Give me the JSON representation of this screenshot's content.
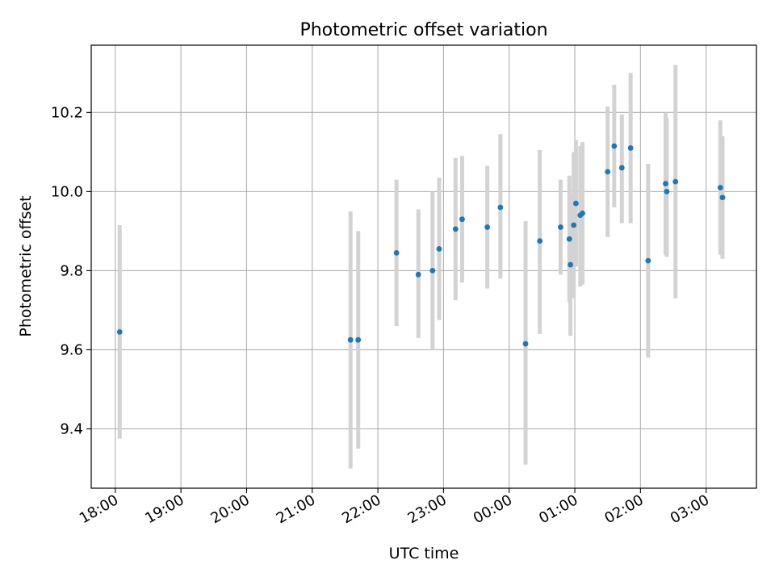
{
  "chart_data": {
    "type": "scatter",
    "title": "Photometric offset variation",
    "xlabel": "UTC time",
    "ylabel": "Photometric offset",
    "x_axis": {
      "kind": "time",
      "range": [
        "17:38",
        "27:46"
      ],
      "tick_labels": [
        "18:00",
        "19:00",
        "20:00",
        "21:00",
        "22:00",
        "23:00",
        "00:00",
        "01:00",
        "02:00",
        "03:00"
      ]
    },
    "y_axis": {
      "range": [
        9.25,
        10.37
      ],
      "ticks": [
        9.4,
        9.6,
        9.8,
        10.0,
        10.2
      ],
      "tick_labels": [
        "9.4",
        "9.6",
        "9.8",
        "10.0",
        "10.2"
      ]
    },
    "grid": true,
    "legend": "none",
    "colors": {
      "points": "#1f77b4",
      "errorbars": "#d3d3d3",
      "grid": "#b0b0b0"
    },
    "points": [
      {
        "t": "18:04",
        "y": 9.645,
        "ylo": 9.375,
        "yhi": 9.915
      },
      {
        "t": "21:35",
        "y": 9.625,
        "ylo": 9.3,
        "yhi": 9.95
      },
      {
        "t": "21:42",
        "y": 9.625,
        "ylo": 9.35,
        "yhi": 9.9
      },
      {
        "t": "22:17",
        "y": 9.845,
        "ylo": 9.66,
        "yhi": 10.03
      },
      {
        "t": "22:37",
        "y": 9.79,
        "ylo": 9.63,
        "yhi": 9.955
      },
      {
        "t": "22:50",
        "y": 9.8,
        "ylo": 9.6,
        "yhi": 10.0
      },
      {
        "t": "22:56",
        "y": 9.855,
        "ylo": 9.675,
        "yhi": 10.035
      },
      {
        "t": "23:11",
        "y": 9.905,
        "ylo": 9.725,
        "yhi": 10.085
      },
      {
        "t": "23:17",
        "y": 9.93,
        "ylo": 9.77,
        "yhi": 10.09
      },
      {
        "t": "23:40",
        "y": 9.91,
        "ylo": 9.755,
        "yhi": 10.065
      },
      {
        "t": "23:52",
        "y": 9.96,
        "ylo": 9.78,
        "yhi": 10.145
      },
      {
        "t": "00:15",
        "y": 9.615,
        "ylo": 9.31,
        "yhi": 9.925
      },
      {
        "t": "00:28",
        "y": 9.875,
        "ylo": 9.64,
        "yhi": 10.105
      },
      {
        "t": "00:47",
        "y": 9.91,
        "ylo": 9.79,
        "yhi": 10.03
      },
      {
        "t": "00:55",
        "y": 9.88,
        "ylo": 9.72,
        "yhi": 10.04
      },
      {
        "t": "00:56",
        "y": 9.815,
        "ylo": 9.635,
        "yhi": 9.995
      },
      {
        "t": "00:59",
        "y": 9.915,
        "ylo": 9.73,
        "yhi": 10.1
      },
      {
        "t": "01:01",
        "y": 9.97,
        "ylo": 9.81,
        "yhi": 10.13
      },
      {
        "t": "01:05",
        "y": 9.94,
        "ylo": 9.76,
        "yhi": 10.115
      },
      {
        "t": "01:07",
        "y": 9.945,
        "ylo": 9.765,
        "yhi": 10.125
      },
      {
        "t": "01:30",
        "y": 10.05,
        "ylo": 9.885,
        "yhi": 10.215
      },
      {
        "t": "01:36",
        "y": 10.115,
        "ylo": 9.96,
        "yhi": 10.27
      },
      {
        "t": "01:43",
        "y": 10.06,
        "ylo": 9.92,
        "yhi": 10.195
      },
      {
        "t": "01:51",
        "y": 10.11,
        "ylo": 9.92,
        "yhi": 10.3
      },
      {
        "t": "02:07",
        "y": 9.825,
        "ylo": 9.58,
        "yhi": 10.07
      },
      {
        "t": "02:23",
        "y": 10.02,
        "ylo": 9.84,
        "yhi": 10.2
      },
      {
        "t": "02:24",
        "y": 10.0,
        "ylo": 9.835,
        "yhi": 10.185
      },
      {
        "t": "02:32",
        "y": 10.025,
        "ylo": 9.73,
        "yhi": 10.32
      },
      {
        "t": "03:13",
        "y": 10.01,
        "ylo": 9.84,
        "yhi": 10.18
      },
      {
        "t": "03:15",
        "y": 9.985,
        "ylo": 9.83,
        "yhi": 10.14
      }
    ]
  }
}
